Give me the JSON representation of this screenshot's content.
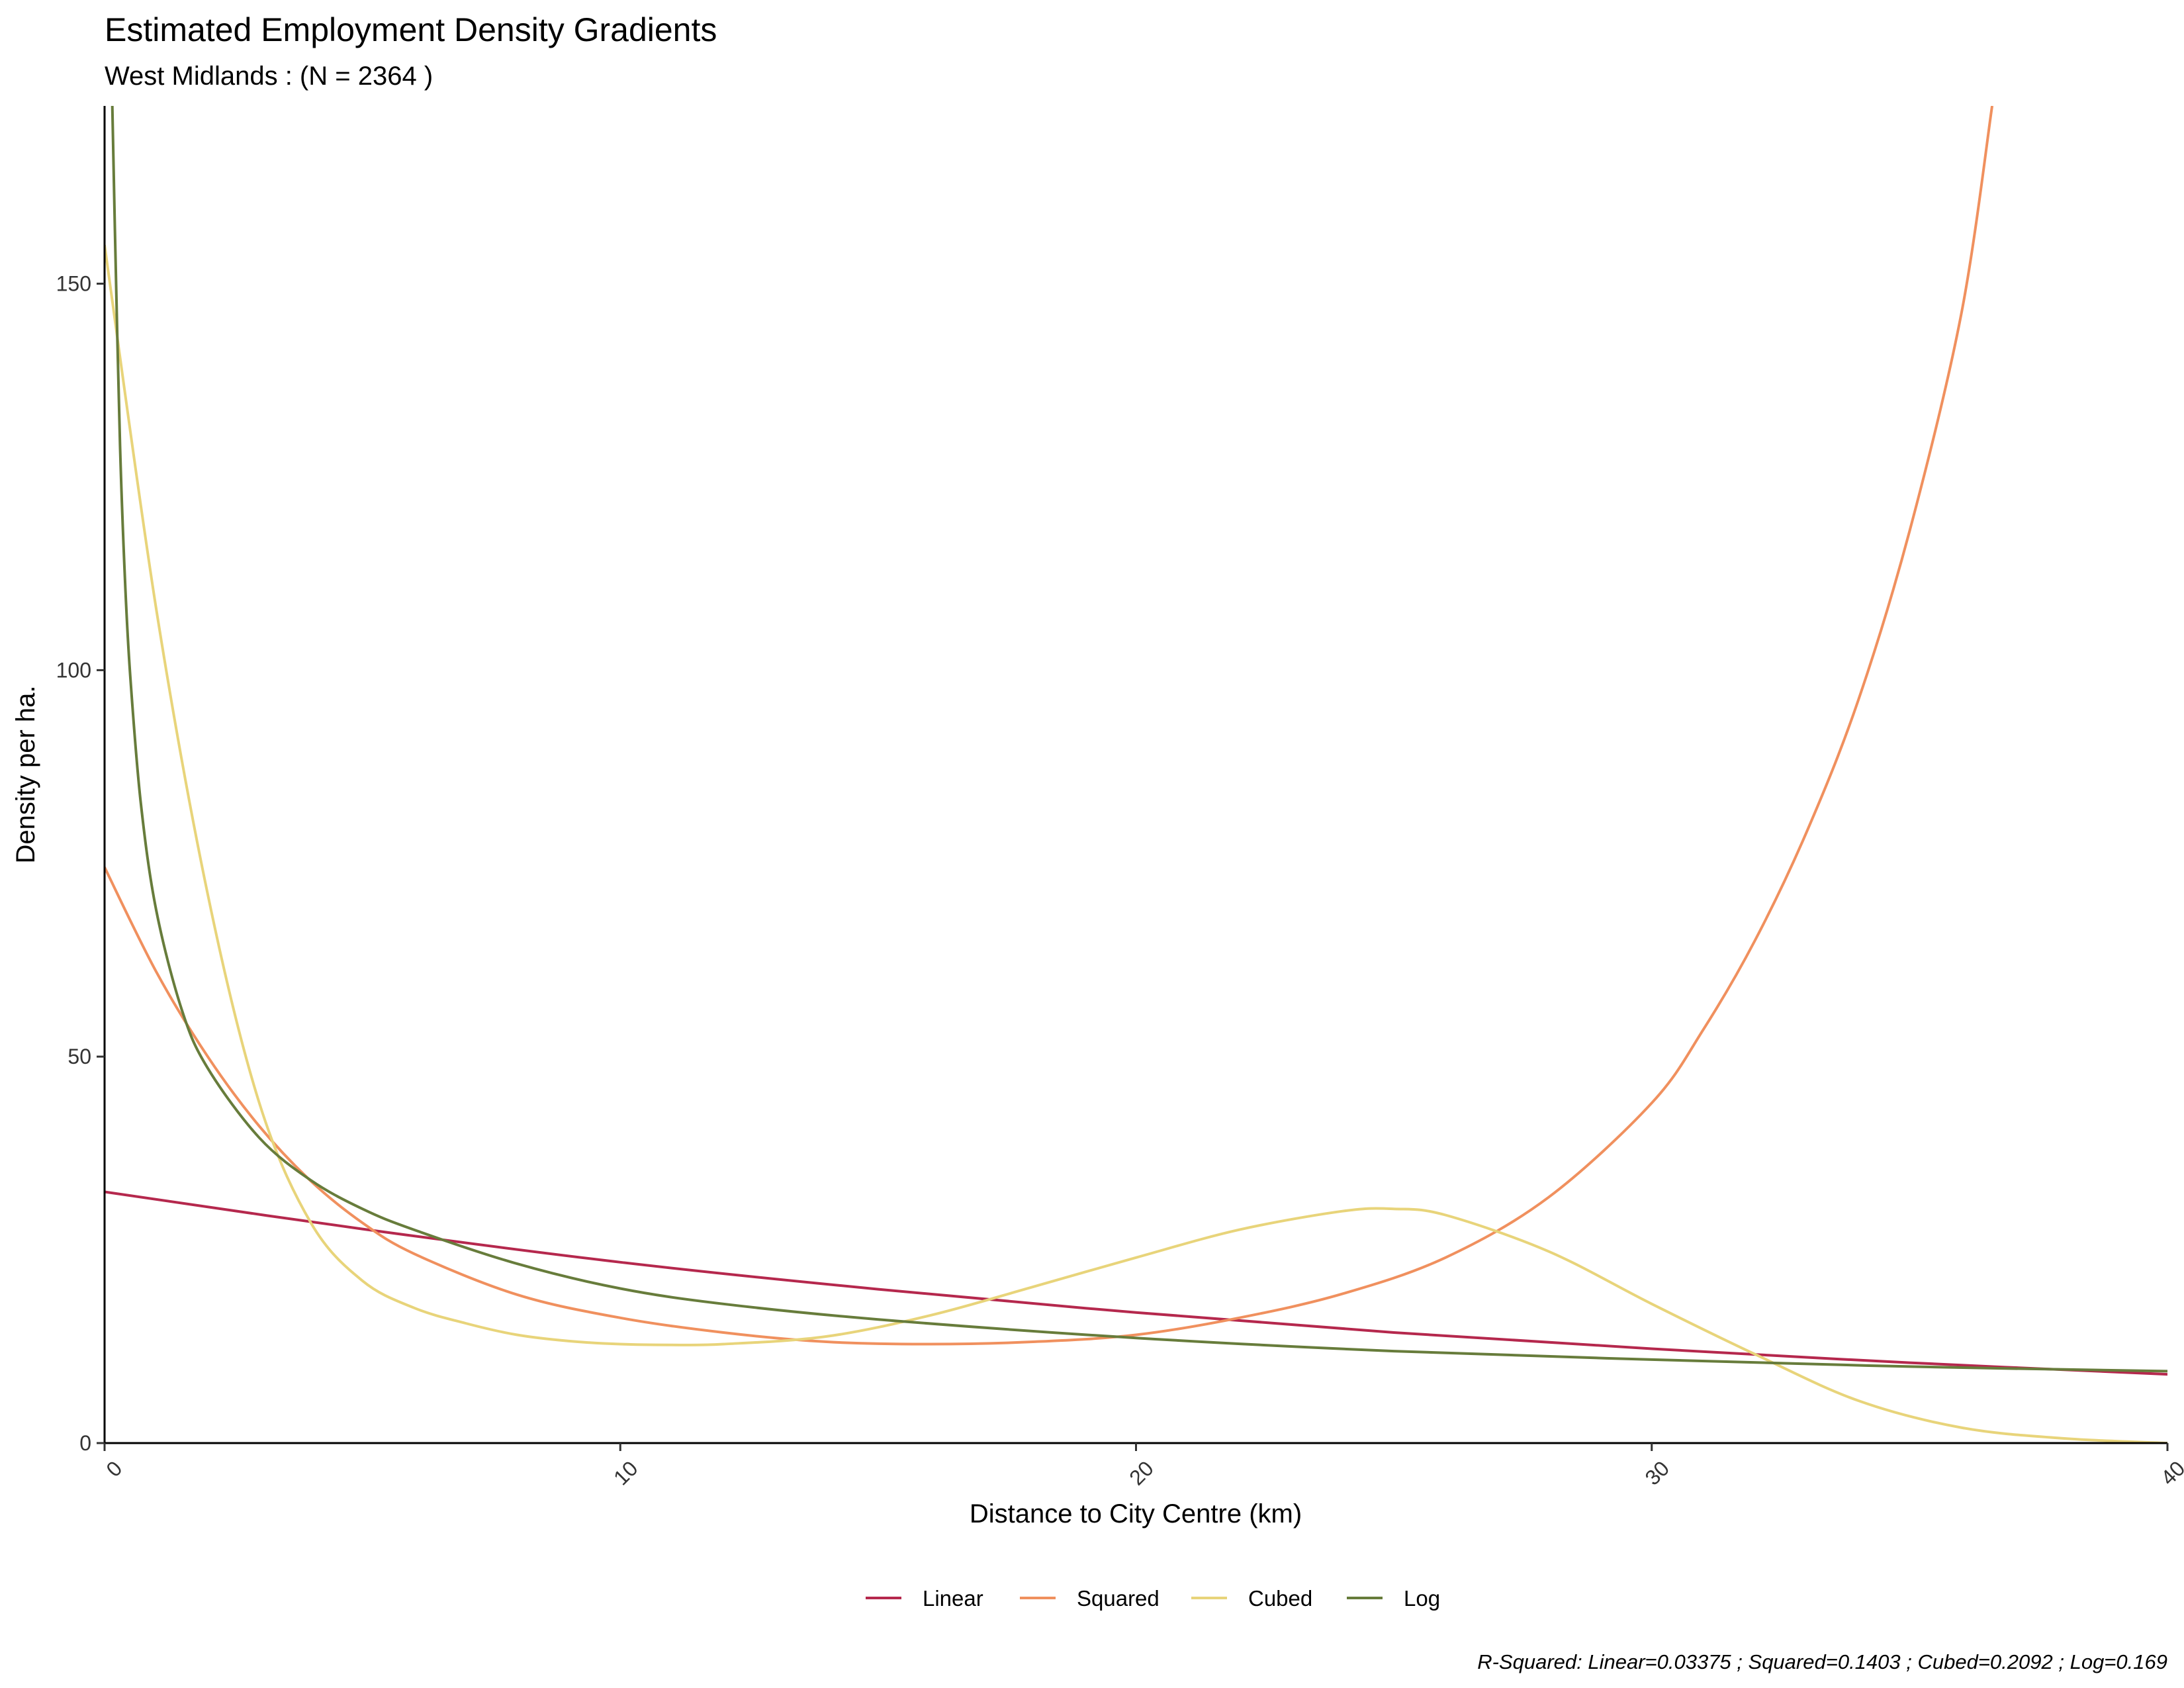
{
  "chart_data": {
    "type": "line",
    "title": "Estimated Employment Density Gradients",
    "subtitle": "West Midlands : (N =  2364 )",
    "xlabel": "Distance to City Centre (km)",
    "ylabel": "Density per ha.",
    "xlim": [
      0,
      40
    ],
    "ylim": [
      0,
      173
    ],
    "x_ticks": [
      0,
      10,
      20,
      30,
      40
    ],
    "y_ticks": [
      0,
      50,
      100,
      150
    ],
    "x_tick_labels": [
      "0",
      "10",
      "20",
      "30",
      "40"
    ],
    "y_tick_labels": [
      "0",
      "50",
      "100",
      "150"
    ],
    "grid": false,
    "legend_position": "bottom",
    "caption": "R-Squared: Linear=0.03375 ; Squared=0.1403 ; Cubed=0.2092 ; Log=0.169",
    "series": [
      {
        "name": "Linear",
        "color": "#B5284D",
        "x": [
          0,
          5,
          10,
          15,
          20,
          25,
          30,
          35,
          40
        ],
        "y": [
          32.5,
          27.7,
          23.4,
          19.9,
          16.9,
          14.3,
          12.2,
          10.4,
          8.9
        ]
      },
      {
        "name": "Squared",
        "color": "#F0905E",
        "x": [
          0,
          1,
          2,
          3,
          4,
          5,
          6,
          8,
          10,
          12,
          14,
          16,
          18,
          20,
          22,
          24,
          26,
          28,
          30,
          31,
          32,
          33,
          34,
          35,
          36,
          36.6
        ],
        "y": [
          74.5,
          61,
          50,
          41,
          33.9,
          28.5,
          24.5,
          19.2,
          16.2,
          14.3,
          13.1,
          12.8,
          13.1,
          14,
          16.2,
          19.3,
          24,
          31.8,
          44,
          53.5,
          65,
          79,
          96,
          118,
          146,
          173
        ]
      },
      {
        "name": "Cubed",
        "color": "#E8D47A",
        "x": [
          0,
          1,
          2,
          3,
          4,
          5,
          6,
          7,
          8,
          9,
          10,
          11,
          12,
          14,
          16,
          18,
          20,
          22,
          24,
          25,
          26,
          28,
          30,
          32,
          34,
          36,
          38,
          40
        ],
        "y": [
          155,
          108,
          71,
          44,
          28.5,
          21,
          17.5,
          15.5,
          14,
          13.2,
          12.8,
          12.7,
          12.8,
          13.8,
          16.5,
          20.2,
          24,
          27.6,
          30,
          30.3,
          29.5,
          24.8,
          18,
          11.5,
          5.5,
          2,
          0.6,
          0
        ]
      },
      {
        "name": "Log",
        "color": "#677C3B",
        "x": [
          0.15,
          0.2,
          0.3,
          0.4,
          0.5,
          0.7,
          1,
          1.5,
          2,
          3,
          4,
          5,
          6,
          8,
          10,
          12,
          15,
          20,
          25,
          30,
          35,
          40
        ],
        "y": [
          173,
          157,
          129,
          111,
          99,
          83,
          69,
          56,
          48.5,
          39.5,
          34,
          30.3,
          27.6,
          23.2,
          20,
          18,
          16,
          13.6,
          11.9,
          10.8,
          9.9,
          9.3
        ]
      }
    ]
  }
}
